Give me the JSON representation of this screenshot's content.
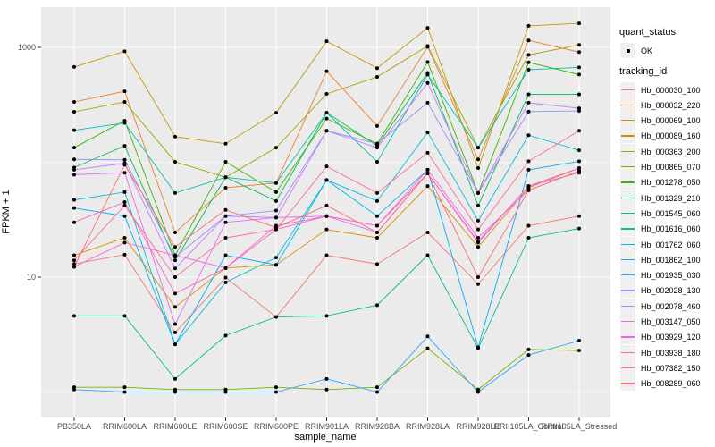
{
  "chart_data": {
    "type": "line",
    "title": "",
    "xlabel": "sample_name",
    "ylabel": "FPKM + 1",
    "y_scale": "log10",
    "ylim": [
      0.8,
      2100
    ],
    "y_major_breaks": [
      10,
      1000
    ],
    "y_minor_breaks": [
      1,
      100
    ],
    "y_tick_labels": [
      "1000",
      "10"
    ],
    "grid": true,
    "legend_position": "right",
    "categories": [
      "PB350LA",
      "RRIM600LA",
      "RRIM600LE",
      "RRIM600SE",
      "RRIM600PE",
      "RRIM901LA",
      "RRIM928BA",
      "RRIM928LA",
      "RRIM928LE",
      "RRII105LA_Control",
      "RRII105LA_Stressed"
    ],
    "legend": {
      "quant_status": {
        "title": "quant_status",
        "items": [
          {
            "label": "OK",
            "marker": "black-point"
          }
        ]
      },
      "tracking_id": {
        "title": "tracking_id"
      }
    },
    "series": [
      {
        "tracking_id": "Hb_000030_100",
        "quant_status": "OK",
        "color": "#F8766D",
        "values": [
          13,
          15.7,
          3.3,
          9.9,
          4.5,
          15.5,
          13,
          24.5,
          8.7,
          28,
          34
        ]
      },
      {
        "tracking_id": "Hb_000032_220",
        "quant_status": "OK",
        "color": "#EA8331",
        "values": [
          335,
          415,
          24.5,
          60,
          66,
          620,
          207,
          1010,
          106,
          1150,
          910
        ]
      },
      {
        "tracking_id": "Hb_000069_100",
        "quant_status": "OK",
        "color": "#D89000",
        "values": [
          15.5,
          22,
          5.5,
          12,
          12.8,
          26,
          22,
          62,
          18.3,
          60,
          89
        ]
      },
      {
        "tracking_id": "Hb_000089_160",
        "quant_status": "OK",
        "color": "#C09B00",
        "values": [
          675,
          925,
          167,
          145,
          270,
          1130,
          660,
          1480,
          89,
          1540,
          1620
        ]
      },
      {
        "tracking_id": "Hb_000363_200",
        "quant_status": "OK",
        "color": "#A3A500",
        "values": [
          275,
          335,
          101,
          74,
          134,
          394,
          553,
          1030,
          134,
          860,
          1050
        ]
      },
      {
        "tracking_id": "Hb_000865_070",
        "quant_status": "OK",
        "color": "#7CAE00",
        "values": [
          1.1,
          1.1,
          1.05,
          1.05,
          1.1,
          1.05,
          1.1,
          2.4,
          1.05,
          2.35,
          2.3
        ]
      },
      {
        "tracking_id": "Hb_001278_050",
        "quant_status": "OK",
        "color": "#39B600",
        "values": [
          134,
          230,
          15.5,
          101,
          55,
          240,
          145,
          745,
          54,
          740,
          580
        ]
      },
      {
        "tracking_id": "Hb_001329_210",
        "quant_status": "OK",
        "color": "#00BB4E",
        "values": [
          90,
          139,
          14,
          74,
          46,
          270,
          139,
          600,
          42,
          390,
          390
        ]
      },
      {
        "tracking_id": "Hb_001545_060",
        "quant_status": "OK",
        "color": "#00C087",
        "values": [
          4.6,
          4.6,
          1.3,
          3.1,
          4.5,
          4.6,
          5.7,
          15.5,
          2.4,
          22,
          26.5
        ]
      },
      {
        "tracking_id": "Hb_001616_060",
        "quant_status": "OK",
        "color": "#00C0AF",
        "values": [
          190,
          220,
          54,
          74,
          66,
          270,
          101,
          580,
          134,
          640,
          670
        ]
      },
      {
        "tracking_id": "Hb_001762_060",
        "quant_status": "OK",
        "color": "#00BCD8",
        "values": [
          47,
          55,
          2.6,
          9,
          14.8,
          70,
          46,
          182,
          31,
          172,
          127
        ]
      },
      {
        "tracking_id": "Hb_001862_100",
        "quant_status": "OK",
        "color": "#00B0F6",
        "values": [
          40,
          34,
          2.6,
          15.5,
          12.8,
          70,
          34,
          86,
          2.45,
          86,
          102
        ]
      },
      {
        "tracking_id": "Hb_001935_030",
        "quant_status": "OK",
        "color": "#35A2FF",
        "values": [
          1.05,
          1.0,
          1.0,
          1.0,
          1.0,
          1.3,
          1.0,
          3.05,
          1.0,
          2.1,
          2.8
        ]
      },
      {
        "tracking_id": "Hb_002028_130",
        "quant_status": "OK",
        "color": "#9590FF",
        "values": [
          106,
          105,
          15,
          34,
          38,
          188,
          145,
          330,
          54,
          276,
          280
        ]
      },
      {
        "tracking_id": "Hb_002078_460",
        "quant_status": "OK",
        "color": "#C77CFF",
        "values": [
          86,
          98,
          11.9,
          34,
          33,
          188,
          134,
          490,
          54,
          330,
          295
        ]
      },
      {
        "tracking_id": "Hb_003147_050",
        "quant_status": "OK",
        "color": "#E76BF3",
        "values": [
          78,
          81,
          3.9,
          30,
          33,
          34,
          24.5,
          80,
          20,
          62,
          81
        ]
      },
      {
        "tracking_id": "Hb_003929_120",
        "quant_status": "OK",
        "color": "#FA62DB",
        "values": [
          12.3,
          20,
          15.5,
          12,
          26,
          34,
          28,
          86,
          22,
          57,
          84
        ]
      },
      {
        "tracking_id": "Hb_003938_180",
        "quant_status": "OK",
        "color": "#FF62BC",
        "values": [
          30,
          45,
          7.2,
          12,
          28,
          34,
          28,
          80,
          20.4,
          62,
          89
        ]
      },
      {
        "tracking_id": "Hb_007382_150",
        "quant_status": "OK",
        "color": "#FF6A98",
        "values": [
          14,
          42,
          10,
          22,
          26,
          92,
          54,
          121,
          26,
          102,
          188
        ]
      },
      {
        "tracking_id": "Hb_008289_060",
        "quant_status": "OK",
        "color": "#FF6C70",
        "values": [
          12.3,
          95,
          18.3,
          38.5,
          27,
          42,
          24.5,
          80,
          10,
          57,
          84
        ]
      }
    ]
  },
  "colors": {
    "panel_bg": "#EBEBEB",
    "grid": "#FFFFFF",
    "point": "#000000",
    "tick_text": "#4D4D4D",
    "tick_mark": "#333333",
    "legend_key_bg": "#F0F0F0"
  }
}
